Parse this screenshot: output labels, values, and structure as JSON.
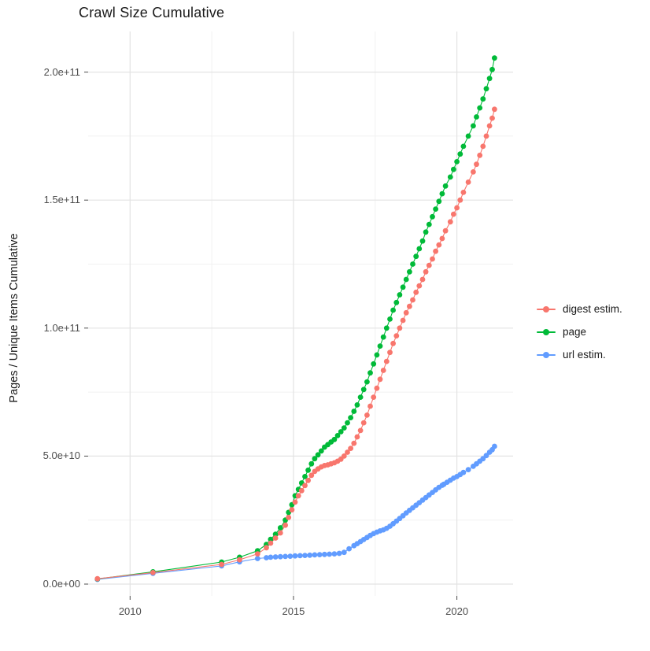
{
  "chart_data": {
    "type": "scatter",
    "title": "Crawl Size Cumulative",
    "xlabel": "",
    "ylabel": "Pages / Unique Items Cumulative",
    "y_unit": "values below are in units of 1e10 pages/items",
    "x_unit": "year (decimal)",
    "xlim": [
      2008.7,
      2021.72
    ],
    "ylim": [
      -6000000000.0,
      216000000000.0
    ],
    "grid": "major+minor",
    "legend_position": "right",
    "x_major_ticks": [
      {
        "x": 2010,
        "label": "2010"
      },
      {
        "x": 2015,
        "label": "2015"
      },
      {
        "x": 2020,
        "label": "2020"
      }
    ],
    "x_minor_ticks": [
      2012.5,
      2017.5
    ],
    "y_major_ticks": [
      {
        "v": 0,
        "label": "0.0e+00"
      },
      {
        "v": 5,
        "label": "5.0e+10"
      },
      {
        "v": 10,
        "label": "1.0e+11"
      },
      {
        "v": 15,
        "label": "1.5e+11"
      },
      {
        "v": 20,
        "label": "2.0e+11"
      }
    ],
    "y_minor_ticks": [
      2.5,
      7.5,
      12.5,
      17.5
    ],
    "series": [
      {
        "name": "url estim.",
        "color": "#619CFF",
        "points": [
          [
            2009.0,
            0.18
          ],
          [
            2010.7,
            0.42
          ],
          [
            2012.8,
            0.71
          ],
          [
            2013.35,
            0.87
          ],
          [
            2013.9,
            1.0
          ],
          [
            2014.17,
            1.03
          ],
          [
            2014.3,
            1.05
          ],
          [
            2014.45,
            1.06
          ],
          [
            2014.6,
            1.07
          ],
          [
            2014.75,
            1.08
          ],
          [
            2014.9,
            1.09
          ],
          [
            2015.05,
            1.1
          ],
          [
            2015.2,
            1.11
          ],
          [
            2015.35,
            1.12
          ],
          [
            2015.5,
            1.13
          ],
          [
            2015.65,
            1.14
          ],
          [
            2015.8,
            1.15
          ],
          [
            2015.95,
            1.16
          ],
          [
            2016.1,
            1.17
          ],
          [
            2016.25,
            1.18
          ],
          [
            2016.4,
            1.2
          ],
          [
            2016.55,
            1.24
          ],
          [
            2016.7,
            1.38
          ],
          [
            2016.85,
            1.5
          ],
          [
            2016.95,
            1.58
          ],
          [
            2017.05,
            1.66
          ],
          [
            2017.15,
            1.74
          ],
          [
            2017.25,
            1.82
          ],
          [
            2017.35,
            1.9
          ],
          [
            2017.45,
            1.97
          ],
          [
            2017.55,
            2.03
          ],
          [
            2017.65,
            2.08
          ],
          [
            2017.75,
            2.12
          ],
          [
            2017.85,
            2.18
          ],
          [
            2017.95,
            2.26
          ],
          [
            2018.05,
            2.36
          ],
          [
            2018.15,
            2.46
          ],
          [
            2018.25,
            2.56
          ],
          [
            2018.35,
            2.67
          ],
          [
            2018.45,
            2.78
          ],
          [
            2018.55,
            2.88
          ],
          [
            2018.65,
            2.98
          ],
          [
            2018.75,
            3.08
          ],
          [
            2018.85,
            3.18
          ],
          [
            2018.95,
            3.28
          ],
          [
            2019.05,
            3.38
          ],
          [
            2019.15,
            3.48
          ],
          [
            2019.25,
            3.58
          ],
          [
            2019.35,
            3.68
          ],
          [
            2019.45,
            3.78
          ],
          [
            2019.55,
            3.86
          ],
          [
            2019.6,
            3.9
          ],
          [
            2019.7,
            3.98
          ],
          [
            2019.8,
            4.06
          ],
          [
            2019.9,
            4.14
          ],
          [
            2020.0,
            4.2
          ],
          [
            2020.1,
            4.28
          ],
          [
            2020.2,
            4.36
          ],
          [
            2020.35,
            4.47
          ],
          [
            2020.5,
            4.6
          ],
          [
            2020.6,
            4.7
          ],
          [
            2020.7,
            4.8
          ],
          [
            2020.8,
            4.9
          ],
          [
            2020.9,
            5.02
          ],
          [
            2021.0,
            5.15
          ],
          [
            2021.08,
            5.25
          ],
          [
            2021.15,
            5.38
          ]
        ]
      },
      {
        "name": "page",
        "color": "#00BA38",
        "points": [
          [
            2009.0,
            0.2
          ],
          [
            2010.7,
            0.48
          ],
          [
            2012.8,
            0.86
          ],
          [
            2013.35,
            1.05
          ],
          [
            2013.9,
            1.3
          ],
          [
            2014.17,
            1.55
          ],
          [
            2014.3,
            1.75
          ],
          [
            2014.45,
            1.95
          ],
          [
            2014.6,
            2.2
          ],
          [
            2014.75,
            2.5
          ],
          [
            2014.85,
            2.8
          ],
          [
            2014.95,
            3.1
          ],
          [
            2015.05,
            3.45
          ],
          [
            2015.15,
            3.7
          ],
          [
            2015.25,
            3.95
          ],
          [
            2015.35,
            4.2
          ],
          [
            2015.45,
            4.45
          ],
          [
            2015.55,
            4.7
          ],
          [
            2015.65,
            4.9
          ],
          [
            2015.75,
            5.05
          ],
          [
            2015.85,
            5.2
          ],
          [
            2015.95,
            5.35
          ],
          [
            2016.05,
            5.45
          ],
          [
            2016.15,
            5.55
          ],
          [
            2016.25,
            5.65
          ],
          [
            2016.35,
            5.8
          ],
          [
            2016.45,
            5.95
          ],
          [
            2016.55,
            6.1
          ],
          [
            2016.65,
            6.3
          ],
          [
            2016.75,
            6.5
          ],
          [
            2016.85,
            6.75
          ],
          [
            2016.95,
            7.0
          ],
          [
            2017.05,
            7.3
          ],
          [
            2017.15,
            7.6
          ],
          [
            2017.25,
            7.9
          ],
          [
            2017.35,
            8.25
          ],
          [
            2017.45,
            8.6
          ],
          [
            2017.55,
            8.95
          ],
          [
            2017.65,
            9.3
          ],
          [
            2017.75,
            9.65
          ],
          [
            2017.85,
            10.0
          ],
          [
            2017.95,
            10.35
          ],
          [
            2018.05,
            10.7
          ],
          [
            2018.15,
            11.0
          ],
          [
            2018.25,
            11.3
          ],
          [
            2018.35,
            11.6
          ],
          [
            2018.45,
            11.9
          ],
          [
            2018.55,
            12.2
          ],
          [
            2018.65,
            12.5
          ],
          [
            2018.75,
            12.8
          ],
          [
            2018.85,
            13.1
          ],
          [
            2018.95,
            13.4
          ],
          [
            2019.05,
            13.75
          ],
          [
            2019.15,
            14.05
          ],
          [
            2019.25,
            14.35
          ],
          [
            2019.35,
            14.65
          ],
          [
            2019.45,
            14.95
          ],
          [
            2019.55,
            15.25
          ],
          [
            2019.65,
            15.55
          ],
          [
            2019.8,
            15.9
          ],
          [
            2019.9,
            16.2
          ],
          [
            2020.0,
            16.5
          ],
          [
            2020.1,
            16.8
          ],
          [
            2020.2,
            17.1
          ],
          [
            2020.35,
            17.5
          ],
          [
            2020.5,
            17.9
          ],
          [
            2020.6,
            18.25
          ],
          [
            2020.7,
            18.6
          ],
          [
            2020.8,
            18.95
          ],
          [
            2020.9,
            19.35
          ],
          [
            2021.0,
            19.75
          ],
          [
            2021.08,
            20.1
          ],
          [
            2021.15,
            20.55
          ]
        ]
      },
      {
        "name": "digest estim.",
        "color": "#F8766D",
        "points": [
          [
            2009.0,
            0.21
          ],
          [
            2010.7,
            0.45
          ],
          [
            2012.8,
            0.77
          ],
          [
            2013.35,
            0.95
          ],
          [
            2013.9,
            1.18
          ],
          [
            2014.17,
            1.42
          ],
          [
            2014.3,
            1.6
          ],
          [
            2014.45,
            1.8
          ],
          [
            2014.6,
            2.0
          ],
          [
            2014.75,
            2.3
          ],
          [
            2014.85,
            2.6
          ],
          [
            2014.95,
            2.9
          ],
          [
            2015.05,
            3.2
          ],
          [
            2015.15,
            3.45
          ],
          [
            2015.25,
            3.65
          ],
          [
            2015.35,
            3.85
          ],
          [
            2015.45,
            4.05
          ],
          [
            2015.55,
            4.25
          ],
          [
            2015.65,
            4.4
          ],
          [
            2015.75,
            4.5
          ],
          [
            2015.85,
            4.58
          ],
          [
            2015.95,
            4.63
          ],
          [
            2016.05,
            4.66
          ],
          [
            2016.15,
            4.7
          ],
          [
            2016.25,
            4.74
          ],
          [
            2016.35,
            4.8
          ],
          [
            2016.45,
            4.88
          ],
          [
            2016.55,
            5.0
          ],
          [
            2016.65,
            5.15
          ],
          [
            2016.75,
            5.3
          ],
          [
            2016.85,
            5.5
          ],
          [
            2016.95,
            5.75
          ],
          [
            2017.05,
            6.0
          ],
          [
            2017.15,
            6.3
          ],
          [
            2017.25,
            6.6
          ],
          [
            2017.35,
            6.95
          ],
          [
            2017.45,
            7.3
          ],
          [
            2017.55,
            7.65
          ],
          [
            2017.65,
            8.0
          ],
          [
            2017.75,
            8.35
          ],
          [
            2017.85,
            8.7
          ],
          [
            2017.95,
            9.05
          ],
          [
            2018.05,
            9.4
          ],
          [
            2018.15,
            9.7
          ],
          [
            2018.25,
            10.0
          ],
          [
            2018.35,
            10.3
          ],
          [
            2018.45,
            10.6
          ],
          [
            2018.55,
            10.85
          ],
          [
            2018.65,
            11.1
          ],
          [
            2018.75,
            11.4
          ],
          [
            2018.85,
            11.65
          ],
          [
            2018.95,
            11.9
          ],
          [
            2019.05,
            12.2
          ],
          [
            2019.15,
            12.45
          ],
          [
            2019.25,
            12.7
          ],
          [
            2019.35,
            13.0
          ],
          [
            2019.45,
            13.25
          ],
          [
            2019.55,
            13.5
          ],
          [
            2019.65,
            13.8
          ],
          [
            2019.8,
            14.15
          ],
          [
            2019.9,
            14.45
          ],
          [
            2020.0,
            14.7
          ],
          [
            2020.1,
            15.0
          ],
          [
            2020.2,
            15.3
          ],
          [
            2020.35,
            15.7
          ],
          [
            2020.5,
            16.1
          ],
          [
            2020.6,
            16.4
          ],
          [
            2020.7,
            16.75
          ],
          [
            2020.8,
            17.1
          ],
          [
            2020.9,
            17.5
          ],
          [
            2021.0,
            17.9
          ],
          [
            2021.08,
            18.2
          ],
          [
            2021.15,
            18.55
          ]
        ]
      }
    ]
  },
  "legend": {
    "items": [
      {
        "label": "digest estim.",
        "color": "#F8766D"
      },
      {
        "label": "page",
        "color": "#00BA38"
      },
      {
        "label": "url estim.",
        "color": "#619CFF"
      }
    ]
  },
  "style": {
    "grid_major_color": "#E3E3E3",
    "grid_minor_color": "#F1F1F1",
    "tick_mark_color": "#4d4d4d",
    "background": "#ffffff"
  }
}
